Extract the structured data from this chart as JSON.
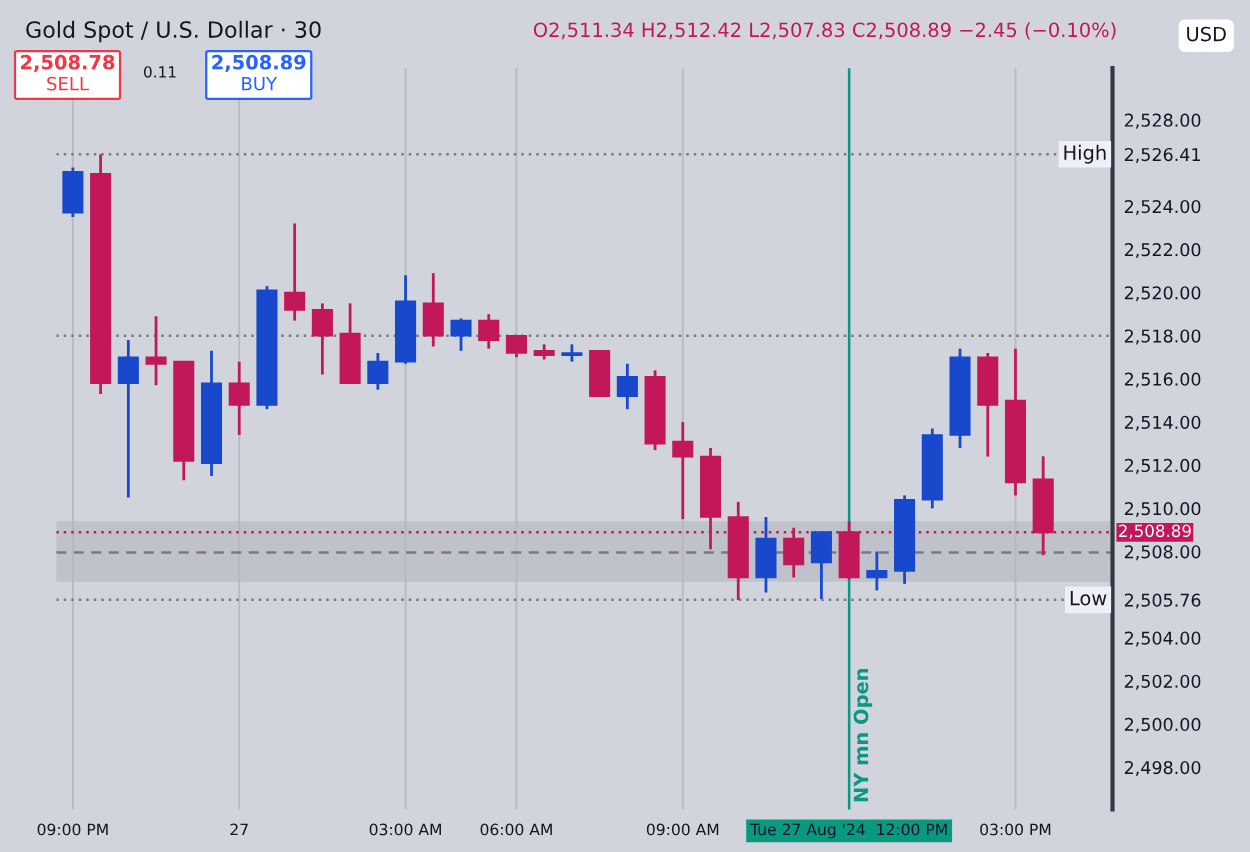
{
  "chart_data": {
    "type": "candlestick",
    "title": "Gold Spot / U.S. Dollar · 30",
    "annotations": [
      "O2,511.34 H2,512.42 L2,507.83 C2,508.89 −2.45 (−0.10%)",
      "2,508.78",
      "SELL",
      "0.11",
      "2,508.89",
      "BUY",
      "USD"
    ],
    "categories": [
      "09:00 PM",
      null,
      null,
      null,
      null,
      null,
      "27",
      null,
      null,
      null,
      null,
      null,
      "03:00 AM",
      null,
      null,
      null,
      "06:00 AM",
      null,
      null,
      null,
      null,
      null,
      "09:00 AM",
      null,
      null,
      null,
      null,
      null,
      "Tue 27 Aug '24  12:00 PM",
      null,
      null,
      null,
      null,
      null,
      "03:00 PM",
      null
    ],
    "ohlc": [
      [
        2523.7,
        2525.8,
        2523.5,
        2525.6
      ],
      [
        2525.5,
        2526.41,
        2515.3,
        2515.8
      ],
      [
        2515.8,
        2517.8,
        2510.5,
        2517.0
      ],
      [
        2517.0,
        2518.9,
        2515.7,
        2516.7
      ],
      [
        2516.8,
        2516.8,
        2511.3,
        2512.2
      ],
      [
        2512.1,
        2517.3,
        2511.5,
        2515.8
      ],
      [
        2515.8,
        2516.8,
        2513.4,
        2514.8
      ],
      [
        2514.8,
        2520.3,
        2514.6,
        2520.1
      ],
      [
        2520.0,
        2523.2,
        2518.7,
        2519.2
      ],
      [
        2519.2,
        2519.5,
        2516.2,
        2518.0
      ],
      [
        2518.1,
        2519.5,
        2515.8,
        2515.8
      ],
      [
        2515.8,
        2517.2,
        2515.5,
        2516.8
      ],
      [
        2516.8,
        2520.8,
        2516.7,
        2519.6
      ],
      [
        2519.5,
        2520.9,
        2517.5,
        2518.0
      ],
      [
        2518.0,
        2518.8,
        2517.3,
        2518.7
      ],
      [
        2518.7,
        2519.0,
        2517.4,
        2517.8
      ],
      [
        2518.0,
        2518.0,
        2517.0,
        2517.2
      ],
      [
        2517.3,
        2517.6,
        2516.9,
        2517.1
      ],
      [
        2517.1,
        2517.6,
        2516.8,
        2517.2
      ],
      [
        2517.3,
        2517.3,
        2515.2,
        2515.2
      ],
      [
        2515.2,
        2516.7,
        2514.6,
        2516.1
      ],
      [
        2516.1,
        2516.4,
        2512.7,
        2513.0
      ],
      [
        2513.1,
        2514.0,
        2509.5,
        2512.4
      ],
      [
        2512.4,
        2512.8,
        2508.1,
        2509.6
      ],
      [
        2509.6,
        2510.3,
        2505.76,
        2506.8
      ],
      [
        2506.8,
        2509.6,
        2506.1,
        2508.6
      ],
      [
        2508.6,
        2509.1,
        2506.8,
        2507.4
      ],
      [
        2507.5,
        2508.9,
        2505.8,
        2508.9
      ],
      [
        2508.9,
        2509.4,
        2506.7,
        2506.8
      ],
      [
        2506.8,
        2508.0,
        2506.2,
        2507.1
      ],
      [
        2507.1,
        2510.6,
        2506.5,
        2510.4
      ],
      [
        2510.4,
        2513.7,
        2510.0,
        2513.4
      ],
      [
        2513.4,
        2517.4,
        2512.8,
        2517.0
      ],
      [
        2517.0,
        2517.2,
        2512.4,
        2514.8
      ],
      [
        2515.0,
        2517.4,
        2510.6,
        2511.2
      ],
      [
        2511.34,
        2512.42,
        2507.83,
        2508.89
      ]
    ],
    "colors": [
      "#1848cc",
      "#c2185b",
      "#1848cc",
      "#c2185b",
      "#c2185b",
      "#1848cc",
      "#c2185b",
      "#1848cc",
      "#c2185b",
      "#c2185b",
      "#c2185b",
      "#1848cc",
      "#1848cc",
      "#c2185b",
      "#1848cc",
      "#c2185b",
      "#c2185b",
      "#c2185b",
      "#1848cc",
      "#c2185b",
      "#1848cc",
      "#c2185b",
      "#c2185b",
      "#c2185b",
      "#c2185b",
      "#1848cc",
      "#c2185b",
      "#1848cc",
      "#c2185b",
      "#1848cc",
      "#1848cc",
      "#1848cc",
      "#1848cc",
      "#c2185b",
      "#c2185b",
      "#c2185b"
    ],
    "ylim": [
      2496.05,
      2530.4
    ],
    "yticks": [
      {
        "value": 2498,
        "label": "2,498.00"
      },
      {
        "value": 2500,
        "label": "2,500.00"
      },
      {
        "value": 2502,
        "label": "2,502.00"
      },
      {
        "value": 2504,
        "label": "2,504.00"
      },
      {
        "value": 2505.76,
        "label": "2,505.76"
      },
      {
        "value": 2508,
        "label": "2,508.00"
      },
      {
        "value": 2510,
        "label": "2,510.00"
      },
      {
        "value": 2512,
        "label": "2,512.00"
      },
      {
        "value": 2514,
        "label": "2,514.00"
      },
      {
        "value": 2516,
        "label": "2,516.00"
      },
      {
        "value": 2518,
        "label": "2,518.00"
      },
      {
        "value": 2520,
        "label": "2,520.00"
      },
      {
        "value": 2522,
        "label": "2,522.00"
      },
      {
        "value": 2524,
        "label": "2,524.00"
      },
      {
        "value": 2526.41,
        "label": "2,526.41"
      },
      {
        "value": 2528,
        "label": "2,528.00"
      }
    ],
    "ref_lines": [
      {
        "axis": "y",
        "value": 2526.41,
        "label": "High",
        "color": "#787b86",
        "line_style": "dotted"
      },
      {
        "axis": "y",
        "value": 2518.0,
        "label": null,
        "color": "#787b86",
        "line_style": "dotted"
      },
      {
        "axis": "y",
        "value": 2505.76,
        "label": "Low",
        "color": "#787b86",
        "line_style": "dotted"
      },
      {
        "axis": "y",
        "value": 2508.89,
        "label": "2,508.89",
        "color": "#c2185b",
        "line_style": "dotted"
      },
      {
        "axis": "y",
        "value": 2507.95,
        "label": null,
        "color": "#787b86",
        "line_style": "dashed"
      },
      {
        "axis": "x",
        "value": "Tue 27 Aug '24  12:00 PM",
        "label": "NY mn Open",
        "color": "#089981",
        "line_style": "solid"
      }
    ],
    "bands": [
      {
        "axis": "y",
        "from": 2506.6,
        "to": 2509.4,
        "label": null,
        "color": "#b2b5be"
      }
    ],
    "grid": "x"
  }
}
